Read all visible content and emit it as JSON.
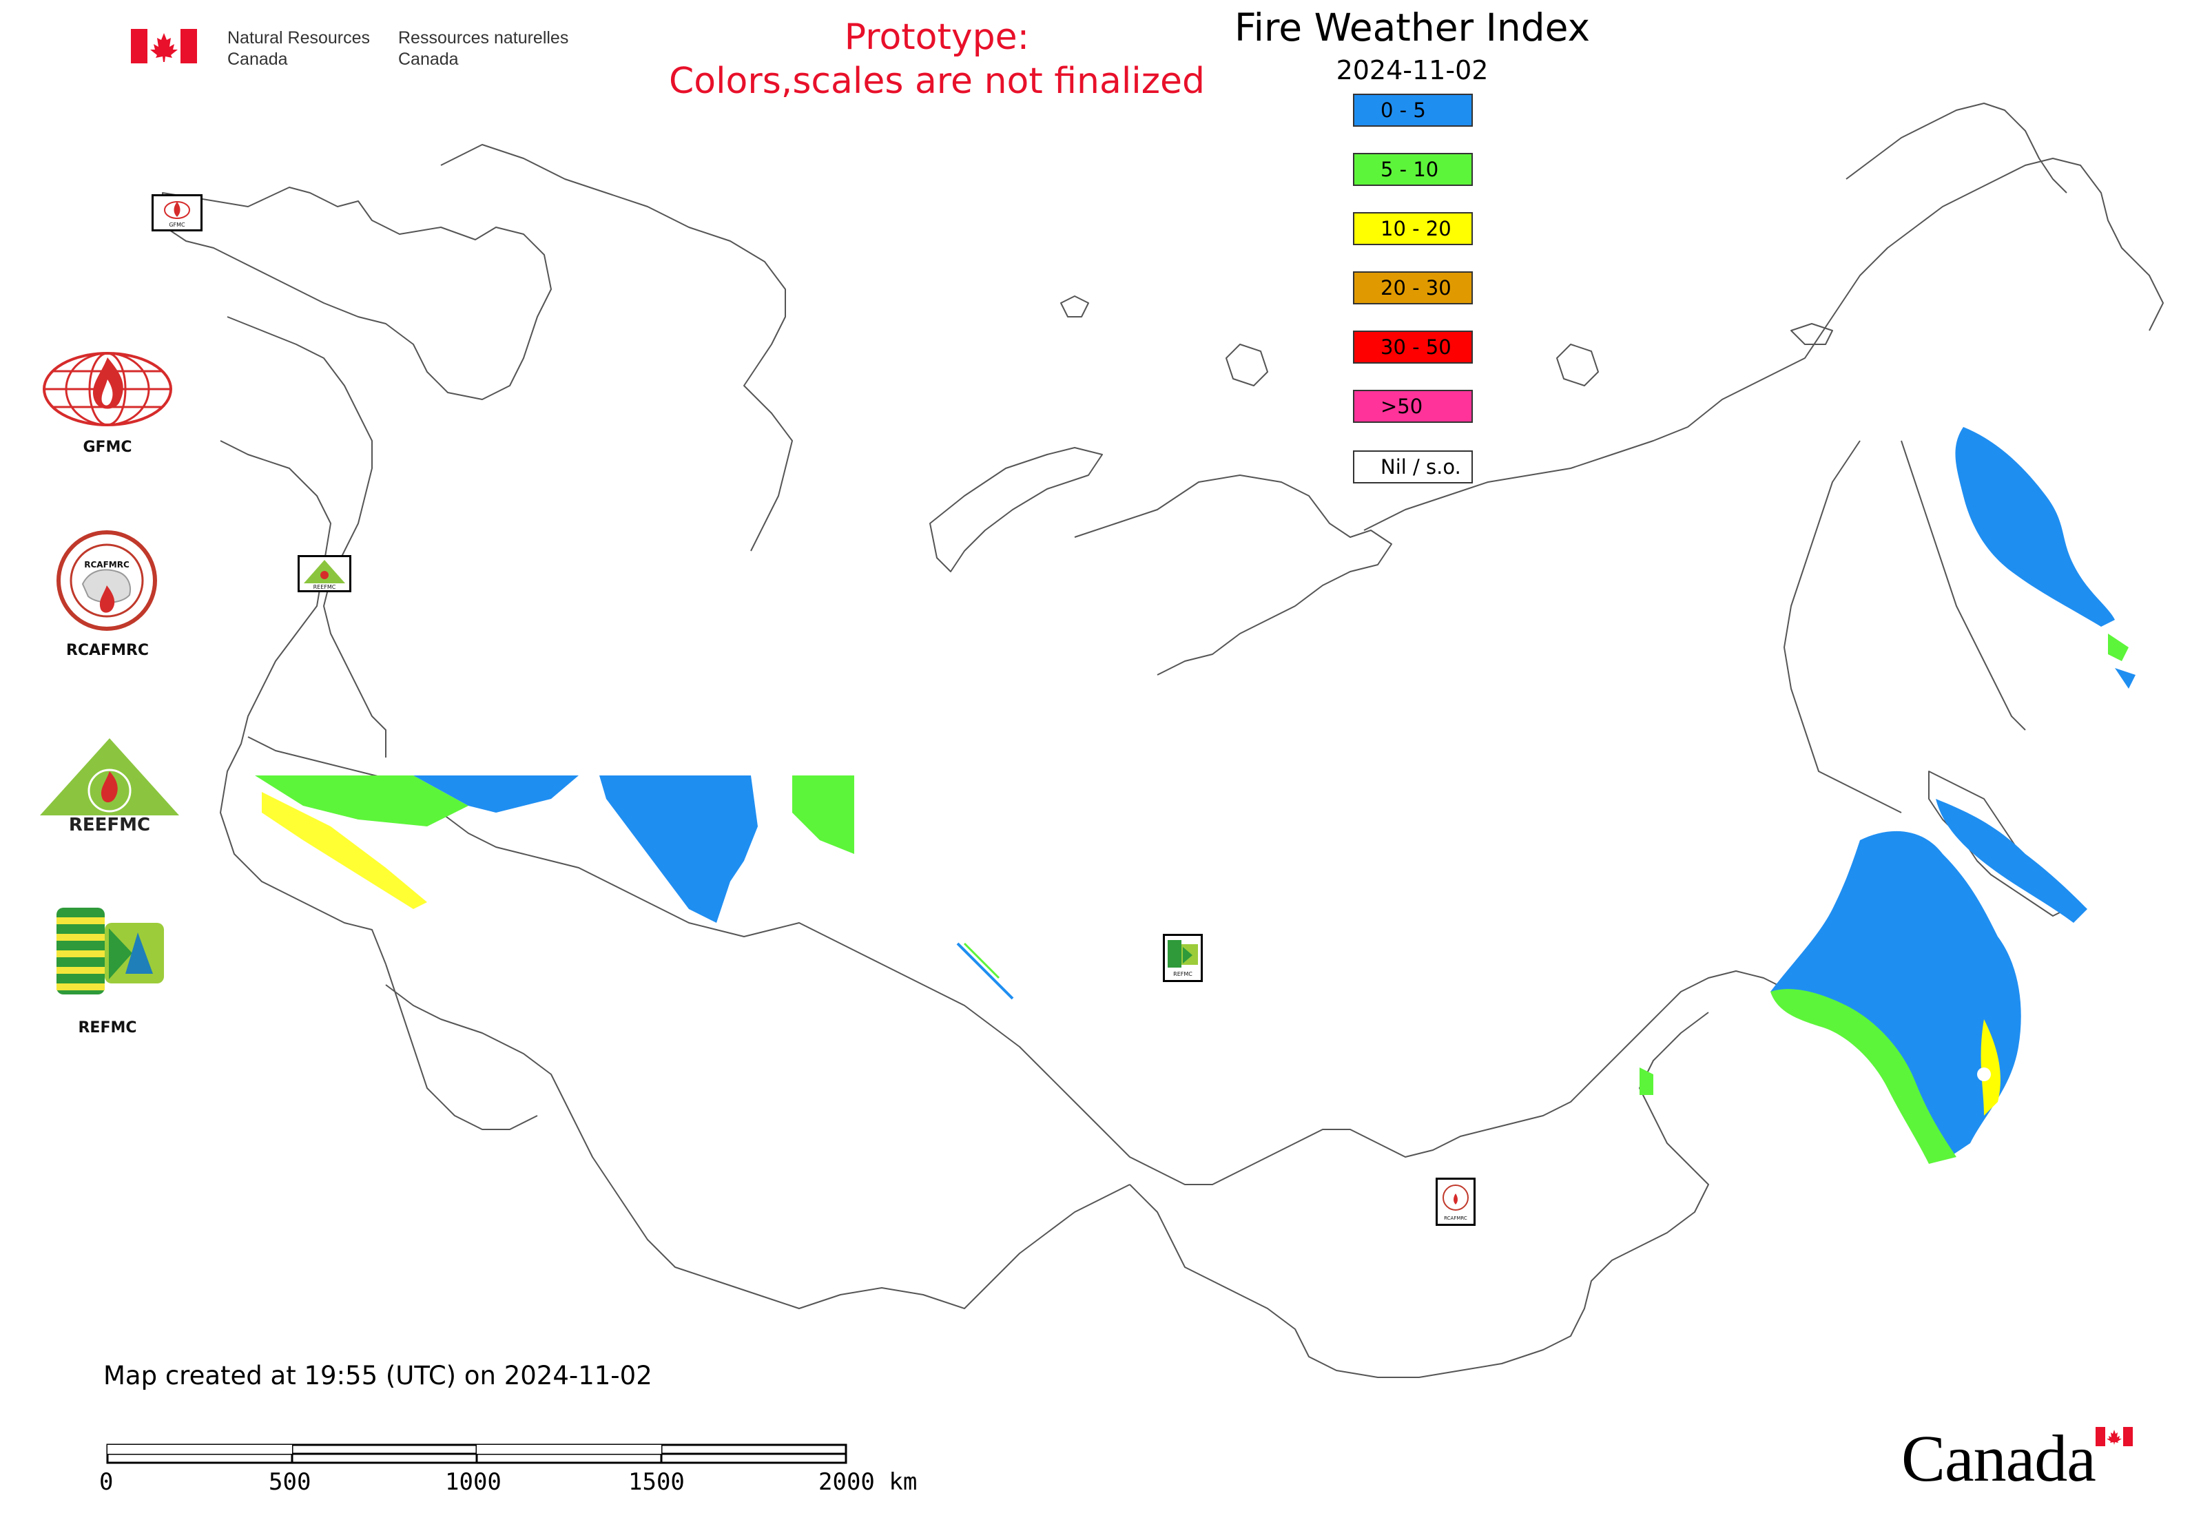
{
  "header": {
    "gov_en_line1": "Natural Resources",
    "gov_en_line2": "Canada",
    "gov_fr_line1": "Ressources naturelles",
    "gov_fr_line2": "Canada",
    "prototype_line1": "Prototype:",
    "prototype_line2": "Colors,scales are not finalized",
    "title": "Fire Weather Index",
    "date": "2024-11-02"
  },
  "legend": {
    "items": [
      {
        "label": "0 - 5",
        "color": "#1f8ef1"
      },
      {
        "label": "5 - 10",
        "color": "#5df53a"
      },
      {
        "label": "10 - 20",
        "color": "#ffff00"
      },
      {
        "label": "20 - 30",
        "color": "#e09a00"
      },
      {
        "label": "30 - 50",
        "color": "#ff0000"
      },
      {
        "label": ">50",
        "color": "#ff3399"
      },
      {
        "label": "Nil / s.o.",
        "color": "#ffffff"
      }
    ]
  },
  "logos": [
    {
      "icon": "gfmc-logo-icon",
      "label": "GFMC"
    },
    {
      "icon": "rcafmrc-logo-icon",
      "label": "RCAFMRC"
    },
    {
      "icon": "reefmc-logo-icon",
      "label": "REEFMC"
    },
    {
      "icon": "refmc-logo-icon",
      "label": "REFMC"
    }
  ],
  "map_markers": [
    {
      "icon": "gfmc-marker-icon",
      "label": "GFMC"
    },
    {
      "icon": "reefmc-marker-icon",
      "label": "REEFMC"
    },
    {
      "icon": "refmc-marker-icon",
      "label": "REFMC"
    },
    {
      "icon": "rcafmrc-marker-icon",
      "label": "RCAFMRC"
    }
  ],
  "footer": {
    "created": "Map created at 19:55 (UTC) on 2024-11-02",
    "scale_labels": [
      "0",
      "500",
      "1000",
      "1500",
      "2000 km"
    ],
    "wordmark": "Canada"
  },
  "colors": {
    "prototype_red": "#e8102a",
    "border_line": "#555555",
    "fwi_blue": "#1f8ef1",
    "fwi_green": "#5df53a",
    "fwi_yellow": "#ffff00"
  }
}
